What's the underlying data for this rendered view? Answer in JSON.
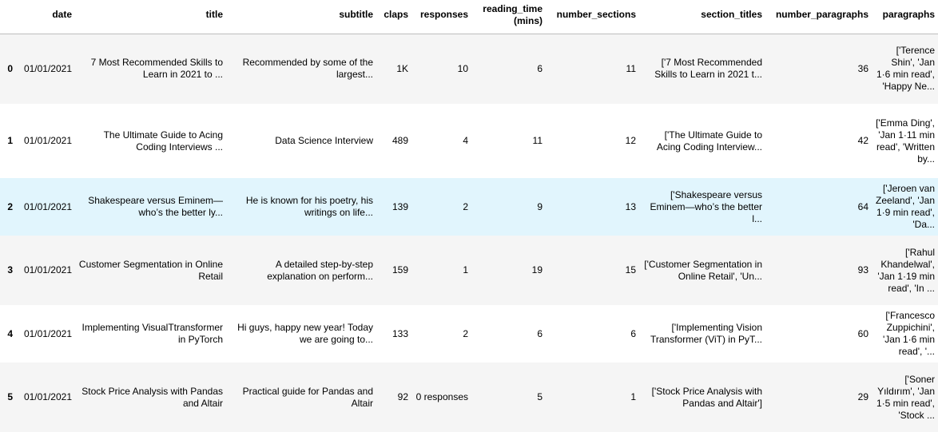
{
  "columns": [
    "",
    "date",
    "title",
    "subtitle",
    "claps",
    "responses",
    "reading_time (mins)",
    "number_sections",
    "section_titles",
    "number_paragraphs",
    "paragraphs"
  ],
  "rows": [
    {
      "index": "0",
      "date": "01/01/2021",
      "title": "7 Most Recommended Skills to Learn in 2021 to ...",
      "subtitle": "Recommended by some of the largest...",
      "claps": "1K",
      "responses": "10",
      "reading_time": "6",
      "number_sections": "11",
      "section_titles": "['7 Most Recommended Skills to Learn in 2021 t...",
      "number_paragraphs": "36",
      "paragraphs": "['Terence Shin', 'Jan 1·6 min read', 'Happy Ne..."
    },
    {
      "index": "1",
      "date": "01/01/2021",
      "title": "The Ultimate Guide to Acing Coding Interviews ...",
      "subtitle": "Data Science Interview",
      "claps": "489",
      "responses": "4",
      "reading_time": "11",
      "number_sections": "12",
      "section_titles": "['The Ultimate Guide to Acing Coding Interview...",
      "number_paragraphs": "42",
      "paragraphs": "['Emma Ding', 'Jan 1·11 min read', 'Written by..."
    },
    {
      "index": "2",
      "date": "01/01/2021",
      "title": "Shakespeare versus Eminem— who’s the better ly...",
      "subtitle": "He is known for his poetry, his writings on life...",
      "claps": "139",
      "responses": "2",
      "reading_time": "9",
      "number_sections": "13",
      "section_titles": "['Shakespeare versus Eminem—who’s the better l...",
      "number_paragraphs": "64",
      "paragraphs": "['Jeroen van Zeeland', 'Jan 1·9 min read', 'Da..."
    },
    {
      "index": "3",
      "date": "01/01/2021",
      "title": "Customer Segmentation in Online Retail",
      "subtitle": "A detailed step-by-step explanation on perform...",
      "claps": "159",
      "responses": "1",
      "reading_time": "19",
      "number_sections": "15",
      "section_titles": "['Customer Segmentation in Online Retail', 'Un...",
      "number_paragraphs": "93",
      "paragraphs": "['Rahul Khandelwal', 'Jan 1·19 min read', 'In ..."
    },
    {
      "index": "4",
      "date": "01/01/2021",
      "title": "Implementing VisualTtransformer in PyTorch",
      "subtitle": "Hi guys, happy new year! Today we are going to...",
      "claps": "133",
      "responses": "2",
      "reading_time": "6",
      "number_sections": "6",
      "section_titles": "['Implementing Vision Transformer (ViT) in PyT...",
      "number_paragraphs": "60",
      "paragraphs": "['Francesco Zuppichini', 'Jan 1·6 min read', '..."
    },
    {
      "index": "5",
      "date": "01/01/2021",
      "title": "Stock Price Analysis with Pandas and Altair",
      "subtitle": "Practical guide for Pandas and Altair",
      "claps": "92",
      "responses": "0 responses",
      "reading_time": "5",
      "number_sections": "1",
      "section_titles": "['Stock Price Analysis with Pandas and Altair']",
      "number_paragraphs": "29",
      "paragraphs": "['Soner Yıldırım', 'Jan 1·5 min read', 'Stock ..."
    }
  ],
  "colors": {
    "stripe": "#f5f5f5",
    "hover": "#e1f5fd",
    "header_border": "#bdbdbd"
  }
}
